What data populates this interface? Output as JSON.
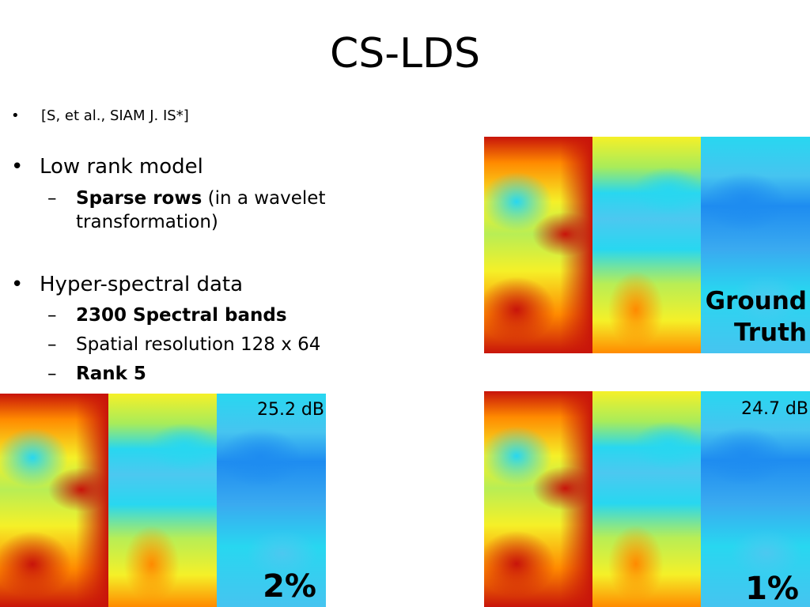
{
  "slide": {
    "title": "CS-LDS",
    "citation": "[S, et al., SIAM J. IS*]",
    "bullets": [
      {
        "text": "Low rank model",
        "subs": [
          {
            "bold": "Sparse rows",
            "rest": " (in a wavelet",
            "line2": "transformation)"
          }
        ]
      },
      {
        "text": "Hyper-spectral data",
        "subs": [
          {
            "bold": "2300 Spectral bands",
            "rest": ""
          },
          {
            "bold": "",
            "rest": "Spatial resolution 128 x 64"
          },
          {
            "bold": "Rank 5",
            "rest": ""
          }
        ]
      }
    ]
  },
  "panels": {
    "ground_truth": {
      "label_line1": "Ground",
      "label_line2": "Truth"
    },
    "two_percent": {
      "pct": "2%",
      "db": "25.2 dB"
    },
    "one_percent": {
      "pct": "1%",
      "db": "24.7 dB"
    }
  },
  "colormap": {
    "red": "#c8140a",
    "orange": "#ff8a00",
    "yellow": "#f5f028",
    "cyan": "#28d7f0",
    "blue": "#1e8cf0"
  }
}
